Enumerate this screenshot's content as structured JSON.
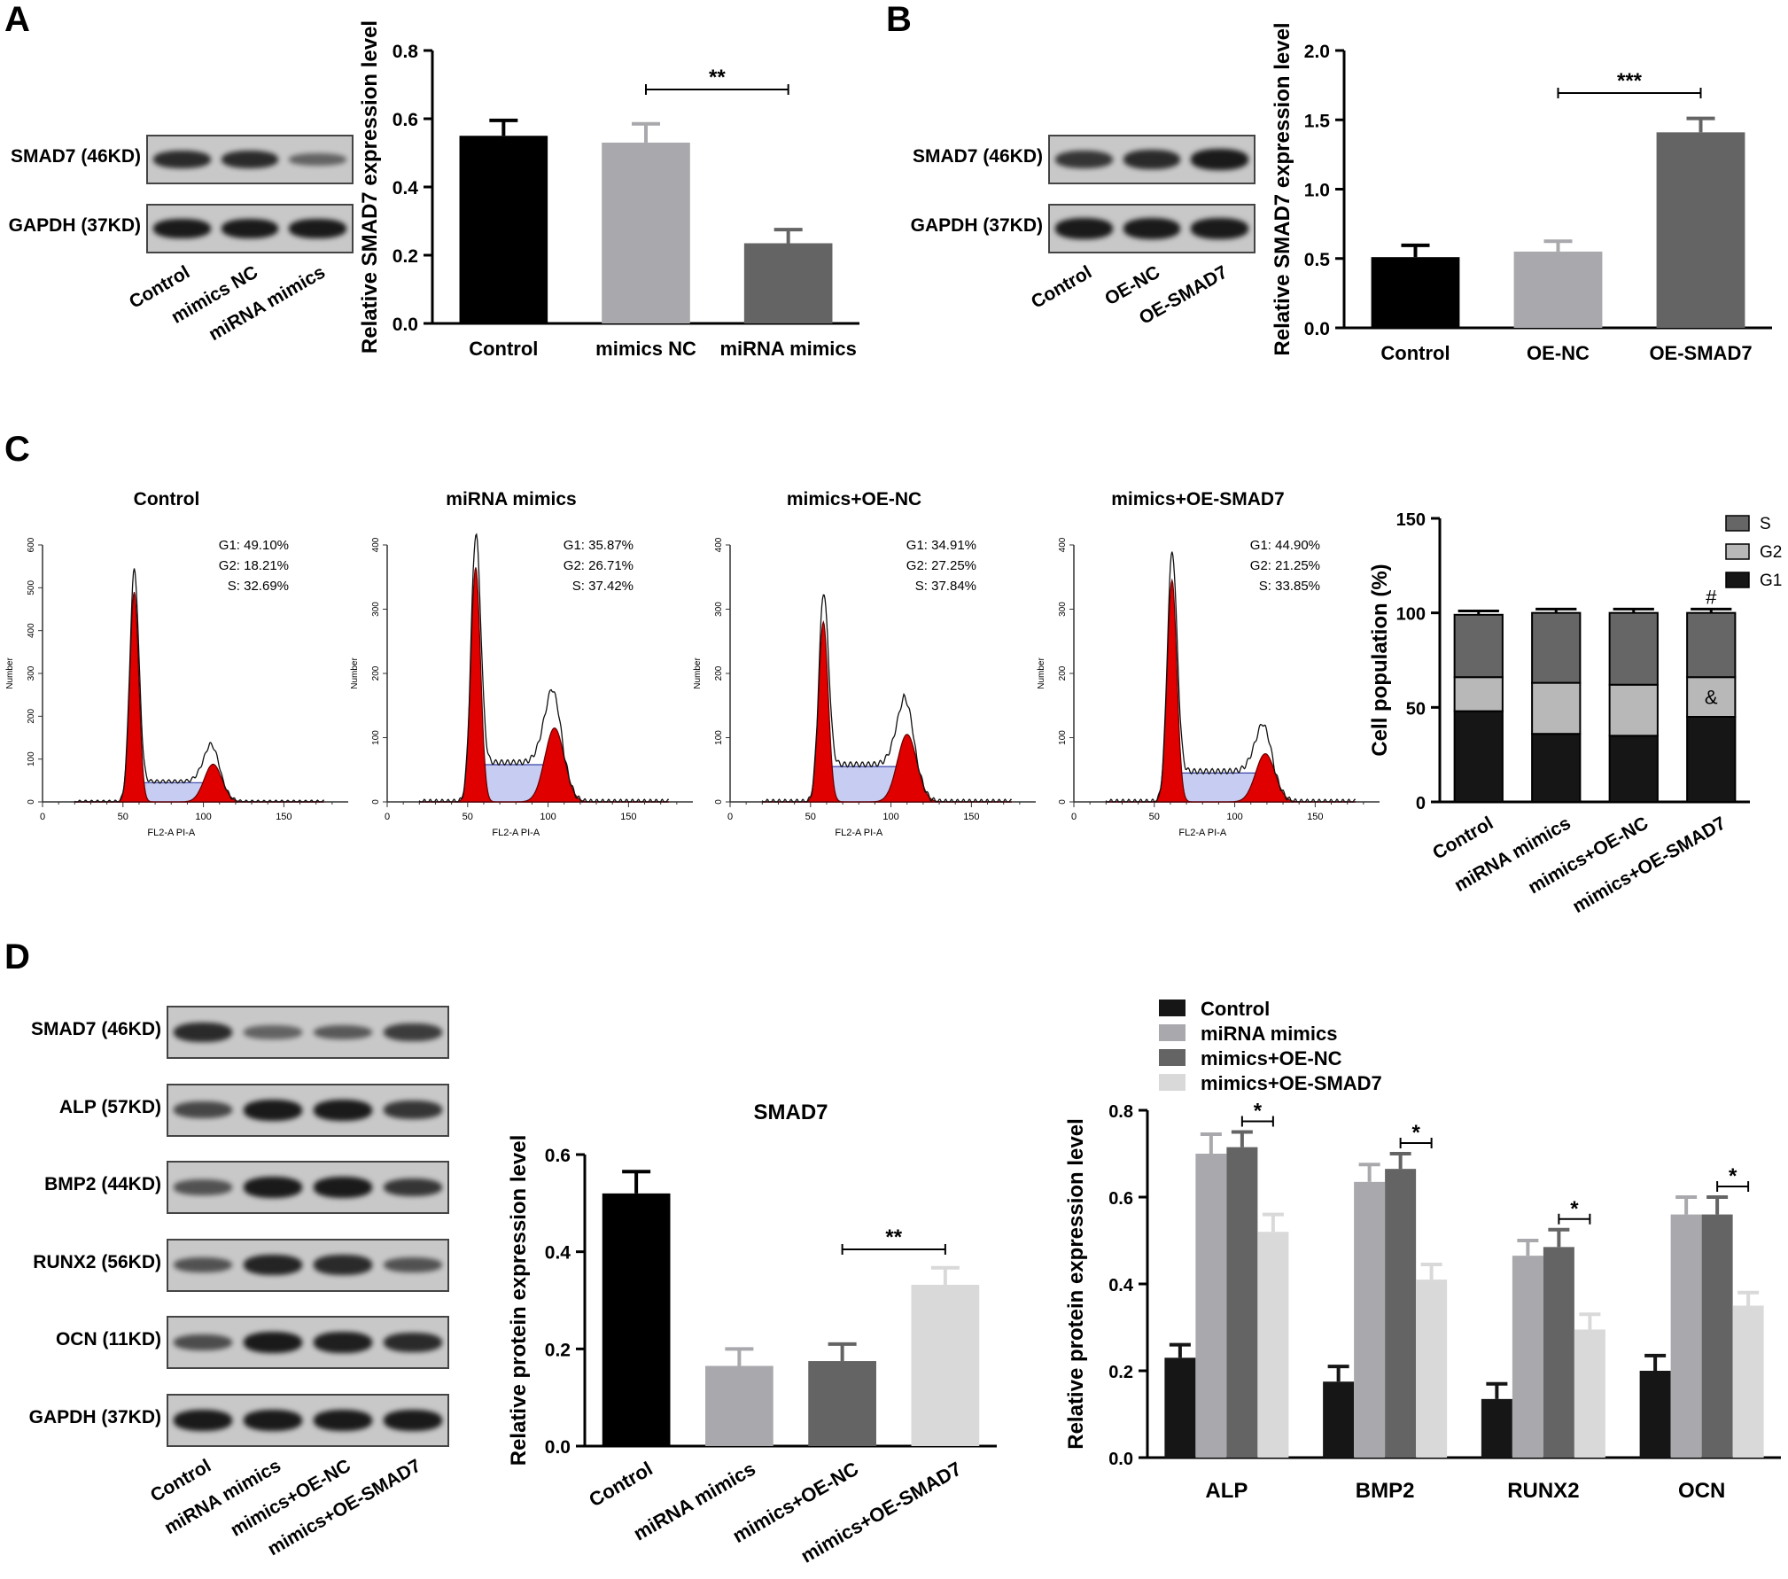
{
  "panels": {
    "A": {
      "letter": "A",
      "blot_rows": [
        "SMAD7 (46KD)",
        "GAPDH (37KD)"
      ],
      "lanes": [
        "Control",
        "mimics NC",
        "miRNA mimics"
      ],
      "band_intensity": [
        [
          0.85,
          0.85,
          0.35
        ],
        [
          1.0,
          1.0,
          1.0
        ]
      ],
      "chart": {
        "type": "bar",
        "categories": [
          "Control",
          "mimics NC",
          "miRNA mimics"
        ],
        "values": [
          0.55,
          0.53,
          0.235
        ],
        "errors": [
          0.045,
          0.055,
          0.04
        ],
        "colors": [
          "#000000",
          "#a9a9ad",
          "#646464"
        ],
        "ylabel": "Relative SMAD7 expression level",
        "ylim": [
          0,
          0.8
        ],
        "yticks": [
          0.0,
          0.2,
          0.4,
          0.6,
          0.8
        ],
        "ytick_labels": [
          "0.0",
          "0.2",
          "0.4",
          "0.6",
          "0.8"
        ],
        "significance": {
          "from": 1,
          "to": 2,
          "label": "**"
        }
      }
    },
    "B": {
      "letter": "B",
      "blot_rows": [
        "SMAD7 (46KD)",
        "GAPDH (37KD)"
      ],
      "lanes": [
        "Control",
        "OE-NC",
        "OE-SMAD7"
      ],
      "band_intensity": [
        [
          0.75,
          0.85,
          1.0
        ],
        [
          1.0,
          1.0,
          1.0
        ]
      ],
      "chart": {
        "type": "bar",
        "categories": [
          "Control",
          "OE-NC",
          "OE-SMAD7"
        ],
        "values": [
          0.51,
          0.55,
          1.41
        ],
        "errors": [
          0.085,
          0.075,
          0.1
        ],
        "colors": [
          "#000000",
          "#a9a9ad",
          "#646464"
        ],
        "ylabel": "Relative SMAD7 expression level",
        "ylim": [
          0,
          2.0
        ],
        "yticks": [
          0.0,
          0.5,
          1.0,
          1.5,
          2.0
        ],
        "ytick_labels": [
          "0.0",
          "0.5",
          "1.0",
          "1.5",
          "2.0"
        ],
        "significance": {
          "from": 1,
          "to": 2,
          "label": "***"
        }
      }
    },
    "C": {
      "letter": "C",
      "flow": [
        {
          "title": "Control",
          "g1": "G1: 49.10%",
          "g2": "G2: 18.21%",
          "s": "S: 32.69%",
          "ymax": 600,
          "yticks": [
            0,
            100,
            200,
            300,
            400,
            500,
            600
          ],
          "ytick_labels": [
            "0",
            "100",
            "200",
            "300",
            "400",
            "500",
            "600"
          ],
          "g1_peak": {
            "x": 57,
            "height": 490,
            "width": 2.8
          },
          "g2_peak": {
            "x": 106,
            "height": 88,
            "width": 5.5
          },
          "s_level": 45
        },
        {
          "title": "miRNA mimics",
          "g1": "G1: 35.87%",
          "g2": "G2: 26.71%",
          "s": "S: 37.42%",
          "ymax": 400,
          "yticks": [
            0,
            100,
            200,
            300,
            400
          ],
          "ytick_labels": [
            "0",
            "100",
            "200",
            "300",
            "400"
          ],
          "g1_peak": {
            "x": 55,
            "height": 365,
            "width": 3.0
          },
          "g2_peak": {
            "x": 104,
            "height": 115,
            "width": 6
          },
          "s_level": 58
        },
        {
          "title": "mimics+OE-NC",
          "g1": "G1: 34.91%",
          "g2": "G2: 27.25%",
          "s": "S: 37.84%",
          "ymax": 400,
          "yticks": [
            0,
            100,
            200,
            300,
            400
          ],
          "ytick_labels": [
            "0",
            "100",
            "200",
            "300",
            "400"
          ],
          "g1_peak": {
            "x": 58,
            "height": 280,
            "width": 3.0
          },
          "g2_peak": {
            "x": 110,
            "height": 105,
            "width": 6
          },
          "s_level": 55
        },
        {
          "title": "mimics+OE-SMAD7",
          "g1": "G1: 44.90%",
          "g2": "G2: 21.25%",
          "s": "S: 33.85%",
          "ymax": 400,
          "yticks": [
            0,
            100,
            200,
            300,
            400
          ],
          "ytick_labels": [
            "0",
            "100",
            "200",
            "300",
            "400"
          ],
          "g1_peak": {
            "x": 61,
            "height": 345,
            "width": 3.0
          },
          "g2_peak": {
            "x": 119,
            "height": 75,
            "width": 6
          },
          "s_level": 45
        }
      ],
      "flow_xlabel": "FL2-A PI-A",
      "flow_ylabel": "Number",
      "flow_xticks": [
        0,
        50,
        100,
        150
      ],
      "flow_xtick_labels": [
        "0",
        "50",
        "100",
        "150"
      ],
      "chart": {
        "type": "bar",
        "stacked": true,
        "categories": [
          "Control",
          "miRNA mimics",
          "mimics+OE-NC",
          "mimics+OE-SMAD7"
        ],
        "series": [
          {
            "name": "G1",
            "values": [
              48,
              36,
              35,
              45
            ],
            "errors": [
              2.5,
              2,
              2,
              2
            ],
            "color": "#161616"
          },
          {
            "name": "G2",
            "values": [
              18,
              27,
              27,
              21
            ],
            "errors": [
              1.5,
              1.5,
              1.5,
              1.5
            ],
            "color": "#b8b8b8"
          },
          {
            "name": "S",
            "values": [
              33,
              37,
              38,
              34
            ],
            "errors": [
              2,
              2,
              2,
              2
            ],
            "color": "#666666"
          }
        ],
        "legend_order": [
          "S",
          "G2",
          "G1"
        ],
        "legend": "top-right",
        "ylabel": "Cell population (%)",
        "ylim": [
          0,
          150
        ],
        "yticks": [
          0,
          50,
          100,
          150
        ],
        "ytick_labels": [
          "0",
          "50",
          "100",
          "150"
        ],
        "annotations": [
          {
            "category": 3,
            "label": "#",
            "position": "above-top"
          },
          {
            "category": 3,
            "label": "&",
            "position": "in-g2"
          }
        ]
      }
    },
    "D": {
      "letter": "D",
      "blot_rows": [
        "SMAD7 (46KD)",
        "ALP (57KD)",
        "BMP2 (44KD)",
        "RUNX2 (56KD)",
        "OCN (11KD)",
        "GAPDH (37KD)"
      ],
      "lanes": [
        "Control",
        "miRNA mimics",
        "mimics+OE-NC",
        "mimics+OE-SMAD7"
      ],
      "band_intensity": [
        [
          0.85,
          0.35,
          0.45,
          0.7
        ],
        [
          0.6,
          1.0,
          1.0,
          0.75
        ],
        [
          0.5,
          1.0,
          1.0,
          0.75
        ],
        [
          0.5,
          0.9,
          0.85,
          0.5
        ],
        [
          0.55,
          1.0,
          0.95,
          0.85
        ],
        [
          1.0,
          1.0,
          1.0,
          1.0
        ]
      ],
      "chart_mid": {
        "type": "bar",
        "title": "SMAD7",
        "categories": [
          "Control",
          "miRNA mimics",
          "mimics+OE-NC",
          "mimics+OE-SMAD7"
        ],
        "values": [
          0.52,
          0.165,
          0.175,
          0.332
        ],
        "errors": [
          0.045,
          0.035,
          0.035,
          0.035
        ],
        "colors": [
          "#000000",
          "#a9a9ad",
          "#646464",
          "#d9d9d9"
        ],
        "ylabel": "Relative protein expression level",
        "ylim": [
          0,
          0.6
        ],
        "yticks": [
          0.0,
          0.2,
          0.4,
          0.6
        ],
        "ytick_labels": [
          "0.0",
          "0.2",
          "0.4",
          "0.6"
        ],
        "significance": {
          "from": 2,
          "to": 3,
          "label": "**"
        }
      },
      "chart_right": {
        "type": "bar",
        "categories": [
          "ALP",
          "BMP2",
          "RUNX2",
          "OCN"
        ],
        "series": [
          {
            "name": "Control",
            "values": [
              0.23,
              0.175,
              0.135,
              0.2
            ],
            "errors": [
              0.03,
              0.035,
              0.035,
              0.035
            ],
            "color": "#161616"
          },
          {
            "name": "miRNA mimics",
            "values": [
              0.7,
              0.635,
              0.465,
              0.56
            ],
            "errors": [
              0.045,
              0.04,
              0.035,
              0.04
            ],
            "color": "#a9a9ad"
          },
          {
            "name": "mimics+OE-NC",
            "values": [
              0.715,
              0.665,
              0.485,
              0.56
            ],
            "errors": [
              0.035,
              0.035,
              0.04,
              0.04
            ],
            "color": "#646464"
          },
          {
            "name": "mimics+OE-SMAD7",
            "values": [
              0.52,
              0.41,
              0.295,
              0.35
            ],
            "errors": [
              0.04,
              0.035,
              0.035,
              0.03
            ],
            "color": "#d9d9d9"
          }
        ],
        "ylabel": "Relative protein expression level",
        "ylim": [
          0,
          0.8
        ],
        "yticks": [
          0.0,
          0.2,
          0.4,
          0.6,
          0.8
        ],
        "ytick_labels": [
          "0.0",
          "0.2",
          "0.4",
          "0.6",
          "0.8"
        ],
        "legend": "top-left",
        "significance": [
          {
            "category": 0,
            "from": 2,
            "to": 3,
            "label": "*"
          },
          {
            "category": 1,
            "from": 2,
            "to": 3,
            "label": "*"
          },
          {
            "category": 2,
            "from": 2,
            "to": 3,
            "label": "*"
          },
          {
            "category": 3,
            "from": 2,
            "to": 3,
            "label": "*"
          }
        ]
      }
    }
  }
}
